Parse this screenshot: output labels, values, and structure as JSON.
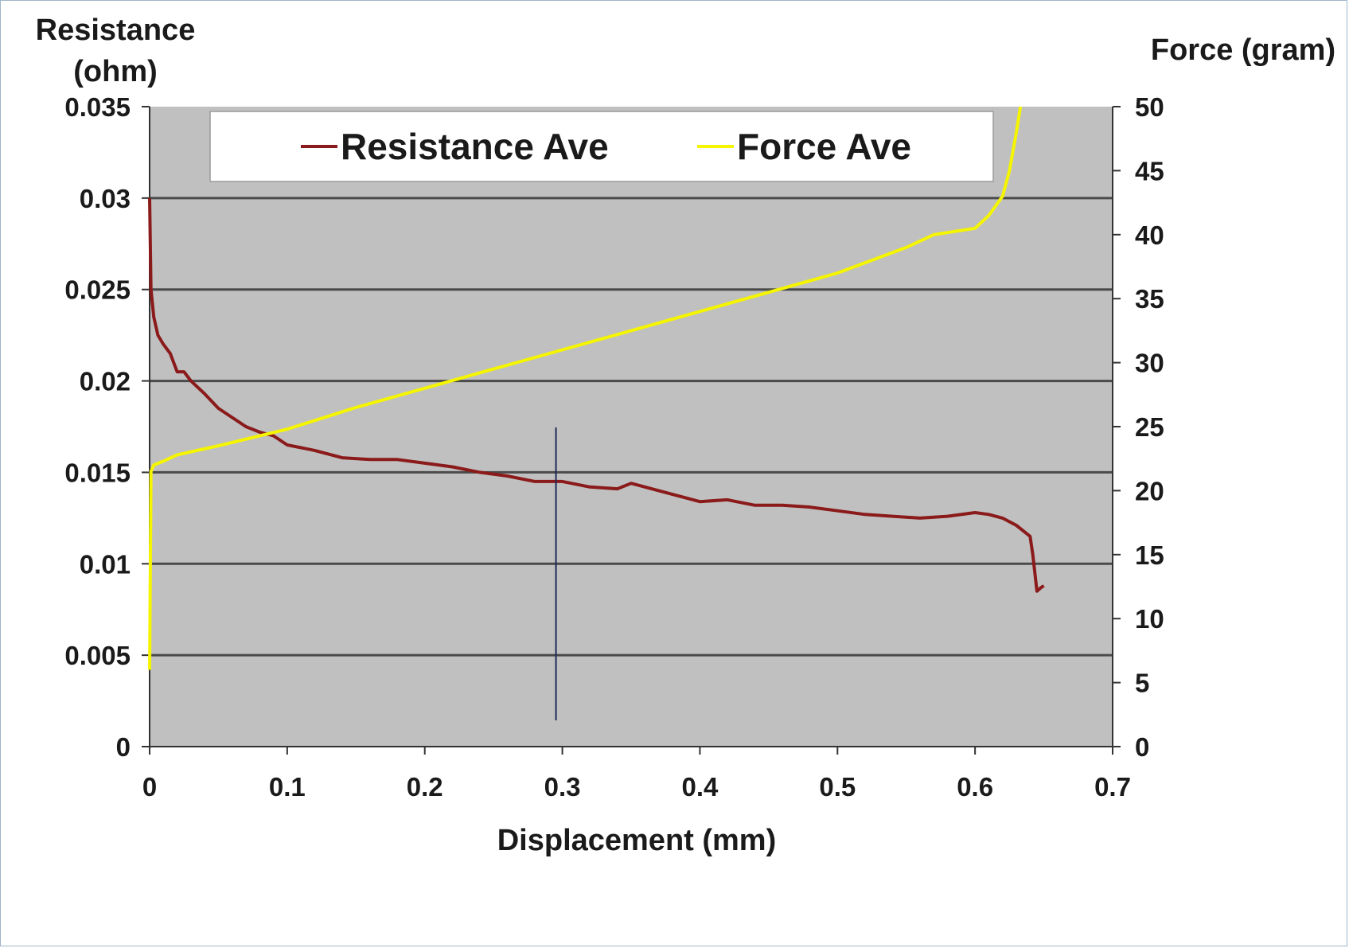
{
  "chart_data": {
    "type": "line",
    "title": "",
    "xlabel": "Displacement (mm)",
    "ylabel_left": [
      "Resistance",
      "(ohm)"
    ],
    "ylabel_right": "Force (gram)",
    "xlim": [
      0,
      0.7
    ],
    "ylim_left": [
      0,
      0.035
    ],
    "ylim_right": [
      0,
      50
    ],
    "x_ticks": [
      "0",
      "0.1",
      "0.2",
      "0.3",
      "0.4",
      "0.5",
      "0.6",
      "0.7"
    ],
    "y_left_ticks": [
      "0",
      "0.005",
      "0.01",
      "0.015",
      "0.02",
      "0.025",
      "0.03",
      "0.035"
    ],
    "y_right_ticks": [
      "0",
      "5",
      "10",
      "15",
      "20",
      "25",
      "30",
      "35",
      "40",
      "45",
      "50"
    ],
    "grid": true,
    "legend": "top",
    "series": [
      {
        "name": "Resistance Ave",
        "axis": "left",
        "color": "#8b1a1a",
        "x": [
          0,
          0.001,
          0.003,
          0.006,
          0.01,
          0.015,
          0.02,
          0.025,
          0.03,
          0.04,
          0.05,
          0.06,
          0.07,
          0.08,
          0.09,
          0.1,
          0.12,
          0.14,
          0.16,
          0.18,
          0.2,
          0.22,
          0.24,
          0.26,
          0.28,
          0.3,
          0.32,
          0.34,
          0.35,
          0.37,
          0.4,
          0.42,
          0.44,
          0.46,
          0.48,
          0.5,
          0.52,
          0.54,
          0.56,
          0.58,
          0.6,
          0.61,
          0.62,
          0.63,
          0.64,
          0.642,
          0.645,
          0.648,
          0.65
        ],
        "y": [
          0.03,
          0.025,
          0.0235,
          0.0225,
          0.022,
          0.0215,
          0.0205,
          0.0205,
          0.02,
          0.0193,
          0.0185,
          0.018,
          0.0175,
          0.0172,
          0.017,
          0.0165,
          0.0162,
          0.0158,
          0.0157,
          0.0157,
          0.0155,
          0.0153,
          0.015,
          0.0148,
          0.0145,
          0.0145,
          0.0142,
          0.0141,
          0.0144,
          0.014,
          0.0134,
          0.0135,
          0.0132,
          0.0132,
          0.0131,
          0.0129,
          0.0127,
          0.0126,
          0.0125,
          0.0126,
          0.0128,
          0.0127,
          0.0125,
          0.0121,
          0.0115,
          0.0105,
          0.0085,
          0.0087,
          0.0088
        ]
      },
      {
        "name": "Force Ave",
        "axis": "right",
        "color": "#f5f500",
        "x": [
          0,
          0.0005,
          0.001,
          0.003,
          0.01,
          0.02,
          0.05,
          0.1,
          0.15,
          0.2,
          0.25,
          0.3,
          0.35,
          0.4,
          0.45,
          0.5,
          0.55,
          0.57,
          0.6,
          0.605,
          0.61,
          0.62,
          0.625,
          0.63,
          0.633
        ],
        "y": [
          6,
          14,
          21.5,
          22,
          22.3,
          22.8,
          23.5,
          24.8,
          26.5,
          28,
          29.5,
          31,
          32.5,
          34,
          35.5,
          37,
          39,
          40,
          40.5,
          41,
          41.5,
          43,
          45,
          48,
          50
        ]
      }
    ]
  }
}
